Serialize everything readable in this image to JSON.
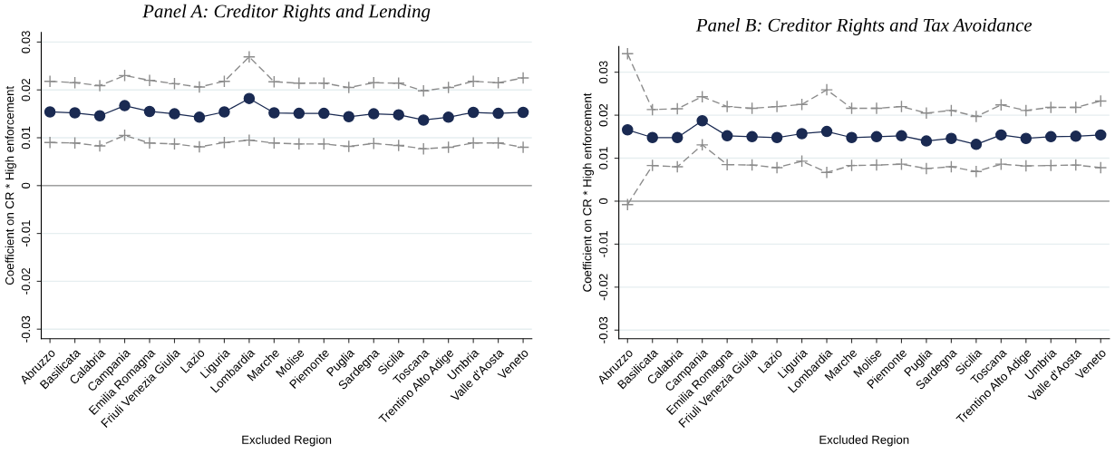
{
  "chart_data": [
    {
      "type": "line",
      "title": "Panel A: Creditor Rights and Lending",
      "xlabel": "Excluded Region",
      "ylabel": "Coefficient on CR * High enforcement",
      "categories": [
        "Abruzzo",
        "Basilicata",
        "Calabria",
        "Campania",
        "Emilia Romagna",
        "Friuli Venezia Giulia",
        "Lazio",
        "Liguria",
        "Lombardia",
        "Marche",
        "Molise",
        "Piemonte",
        "Puglia",
        "Sardegna",
        "Sicilia",
        "Toscana",
        "Trentino Alto Adige",
        "Umbria",
        "Valle d'Aosta",
        "Veneto"
      ],
      "series": [
        {
          "color": "#1a2a52",
          "marker": "circle",
          "line_style": "solid",
          "values": [
            0.0154,
            0.0152,
            0.0146,
            0.0167,
            0.0155,
            0.015,
            0.0143,
            0.0154,
            0.0182,
            0.0152,
            0.0151,
            0.0151,
            0.0144,
            0.015,
            0.0148,
            0.0137,
            0.0143,
            0.0153,
            0.0151,
            0.0153
          ]
        },
        {
          "color": "#8c8c8c",
          "marker": "cross",
          "line_style": "dashed",
          "values": [
            0.0218,
            0.0215,
            0.0209,
            0.023,
            0.022,
            0.0213,
            0.0206,
            0.0218,
            0.0269,
            0.0217,
            0.0214,
            0.0214,
            0.0205,
            0.0215,
            0.0214,
            0.0198,
            0.0205,
            0.0218,
            0.0215,
            0.0225
          ]
        },
        {
          "color": "#8c8c8c",
          "marker": "cross",
          "line_style": "dashed",
          "values": [
            0.009,
            0.0089,
            0.0083,
            0.0105,
            0.0089,
            0.0087,
            0.0081,
            0.009,
            0.0095,
            0.0089,
            0.0087,
            0.0087,
            0.0082,
            0.0088,
            0.0084,
            0.0077,
            0.008,
            0.0089,
            0.0089,
            0.008
          ]
        }
      ],
      "ylim": [
        -0.032,
        0.032
      ],
      "yticks": [
        -0.03,
        -0.02,
        -0.01,
        0,
        0.01,
        0.02,
        0.03
      ],
      "grid": "y",
      "ref_lines": [
        {
          "axis": "y",
          "value": 0,
          "color": "#a0a0a0"
        }
      ]
    },
    {
      "type": "line",
      "title": "Panel B: Creditor Rights and Tax Avoidance",
      "xlabel": "Excluded Region",
      "ylabel": "Coefficient on CR * High enforcement",
      "categories": [
        "Abruzzo",
        "Basilicata",
        "Calabria",
        "Campania",
        "Emilia Romagna",
        "Friuli Venezia Giulia",
        "Lazio",
        "Liguria",
        "Lombardia",
        "Marche",
        "Molise",
        "Piemonte",
        "Puglia",
        "Sardegna",
        "Sicilia",
        "Toscana",
        "Trentino Alto Adige",
        "Umbria",
        "Valle d'Aosta",
        "Veneto"
      ],
      "series": [
        {
          "color": "#1a2a52",
          "marker": "circle",
          "line_style": "solid",
          "values": [
            0.0166,
            0.0148,
            0.0148,
            0.0187,
            0.0152,
            0.015,
            0.0148,
            0.0157,
            0.0162,
            0.0148,
            0.015,
            0.0152,
            0.014,
            0.0146,
            0.0132,
            0.0154,
            0.0146,
            0.015,
            0.0151,
            0.0154
          ]
        },
        {
          "color": "#8c8c8c",
          "marker": "cross",
          "line_style": "dashed",
          "values": [
            0.0343,
            0.0213,
            0.0215,
            0.0243,
            0.022,
            0.0216,
            0.022,
            0.0225,
            0.0259,
            0.0216,
            0.0216,
            0.022,
            0.0205,
            0.0211,
            0.0197,
            0.0224,
            0.0211,
            0.0218,
            0.0218,
            0.0233
          ]
        },
        {
          "color": "#8c8c8c",
          "marker": "cross",
          "line_style": "dashed",
          "values": [
            -0.0008,
            0.0083,
            0.008,
            0.0131,
            0.0085,
            0.0084,
            0.0078,
            0.0093,
            0.0067,
            0.0083,
            0.0084,
            0.0086,
            0.0076,
            0.008,
            0.0069,
            0.0086,
            0.0082,
            0.0083,
            0.0084,
            0.0078
          ]
        }
      ],
      "ylim": [
        -0.032,
        0.036
      ],
      "yticks": [
        -0.03,
        -0.02,
        -0.01,
        0,
        0.01,
        0.02,
        0.03
      ],
      "grid": "y",
      "ref_lines": [
        {
          "axis": "y",
          "value": 0,
          "color": "#a0a0a0"
        }
      ]
    }
  ]
}
